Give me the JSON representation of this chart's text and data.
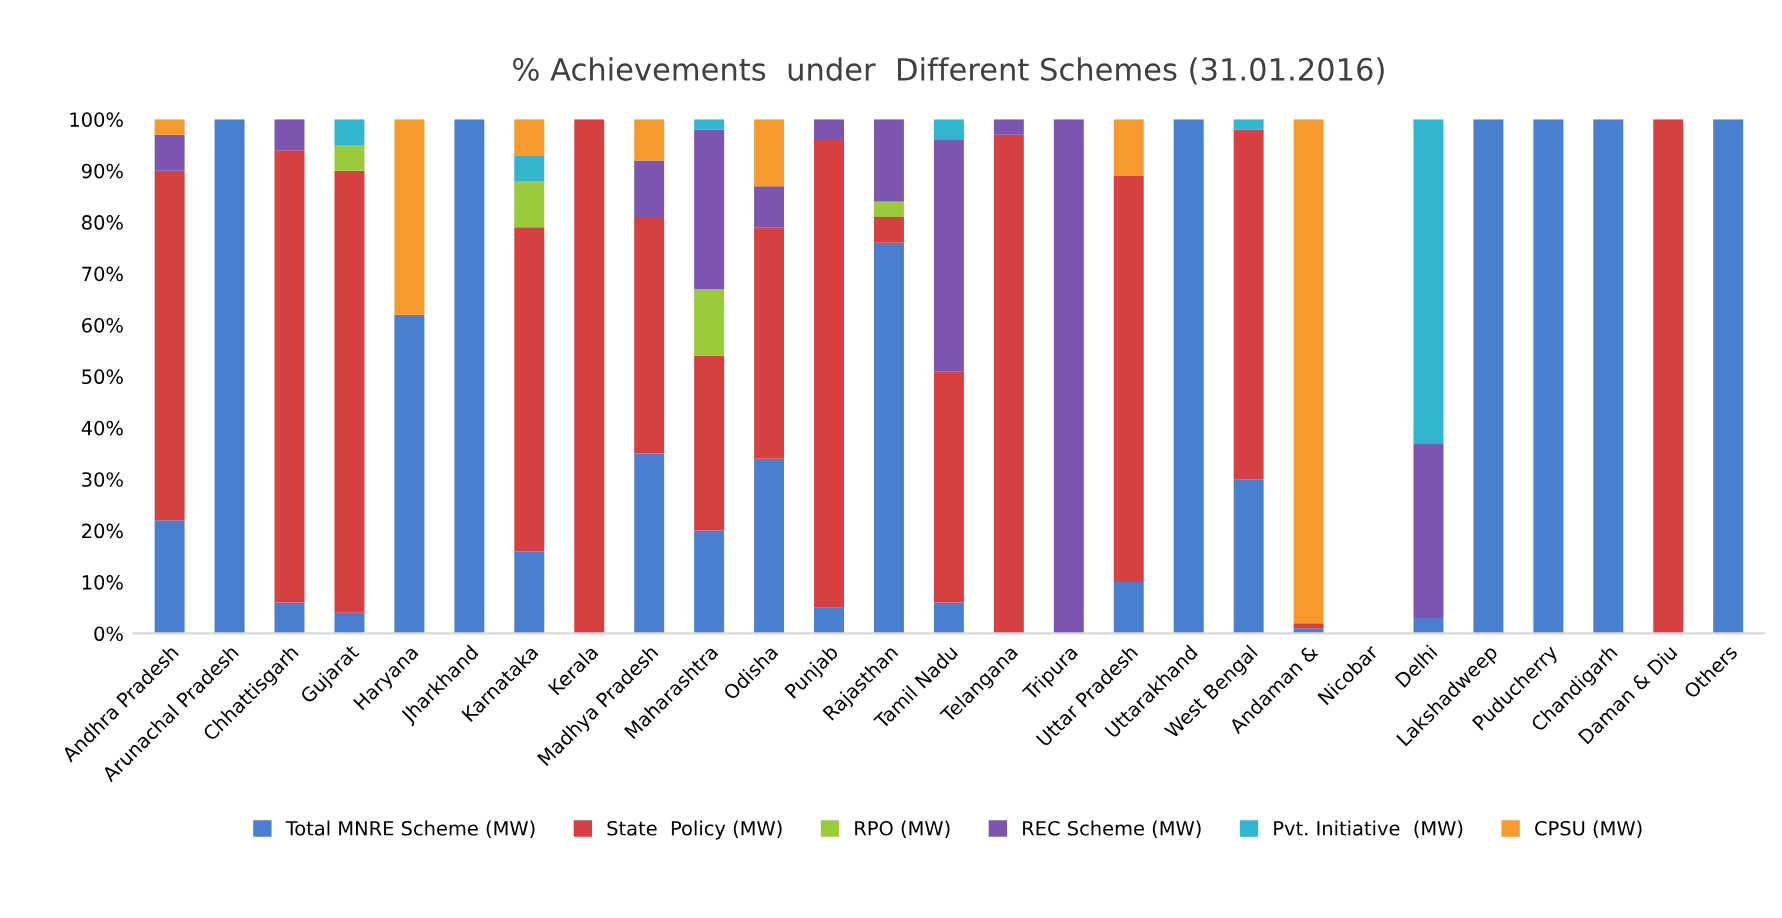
{
  "chart_data": {
    "type": "bar",
    "stacked": true,
    "title": "% Achievements  under  Different Schemes (31.01.2016)",
    "categories": [
      "Andhra Pradesh",
      "Arunachal Pradesh",
      "Chhattisgarh",
      "Gujarat",
      "Haryana",
      "Jharkhand",
      "Karnataka",
      "Kerala",
      "Madhya Pradesh",
      "Maharashtra",
      "Odisha",
      "Punjab",
      "Rajasthan",
      "Tamil Nadu",
      "Telangana",
      "Tripura",
      "Uttar Pradesh",
      "Uttarakhand",
      "West Bengal",
      "Andaman &",
      "Nicobar",
      "Delhi",
      "Lakshadweep",
      "Puducherry",
      "Chandigarh",
      "Daman & Diu",
      "Others"
    ],
    "series": [
      {
        "name": "Total MNRE Scheme (MW)",
        "color": "#4a7fd0",
        "values": [
          22,
          100,
          6,
          4,
          62,
          100,
          16,
          0,
          35,
          20,
          34,
          5,
          76,
          6,
          0,
          0,
          10,
          100,
          30,
          1,
          null,
          3,
          100,
          100,
          100,
          0,
          100
        ]
      },
      {
        "name": "State  Policy (MW)",
        "color": "#d64040",
        "values": [
          68,
          0,
          88,
          86,
          0,
          0,
          63,
          100,
          46,
          34,
          45,
          91,
          5,
          45,
          97,
          0,
          79,
          0,
          68,
          1,
          null,
          0,
          0,
          0,
          0,
          100,
          0
        ]
      },
      {
        "name": "RPO (MW)",
        "color": "#9bcb3c",
        "values": [
          0,
          0,
          0,
          5,
          0,
          0,
          9,
          0,
          0,
          13,
          0,
          0,
          3,
          0,
          0,
          0,
          0,
          0,
          0,
          0,
          null,
          0,
          0,
          0,
          0,
          0,
          0
        ]
      },
      {
        "name": "REC Scheme (MW)",
        "color": "#7c55b0",
        "values": [
          7,
          0,
          6,
          0,
          0,
          0,
          0,
          0,
          11,
          31,
          8,
          4,
          16,
          45,
          3,
          100,
          0,
          0,
          0,
          0,
          null,
          34,
          0,
          0,
          0,
          0,
          0
        ]
      },
      {
        "name": "Pvt. Initiative  (MW)",
        "color": "#33b5d0",
        "values": [
          0,
          0,
          0,
          5,
          0,
          0,
          5,
          0,
          0,
          2,
          0,
          0,
          0,
          4,
          0,
          0,
          0,
          0,
          2,
          0,
          null,
          63,
          0,
          0,
          0,
          0,
          0
        ]
      },
      {
        "name": "CPSU (MW)",
        "color": "#f79a2e",
        "values": [
          3,
          0,
          0,
          0,
          38,
          0,
          7,
          0,
          8,
          0,
          13,
          0,
          0,
          0,
          0,
          0,
          11,
          0,
          0,
          98,
          null,
          0,
          0,
          0,
          0,
          0,
          0
        ]
      }
    ],
    "ylim": [
      0,
      100
    ],
    "yticks": [
      {
        "value": 0,
        "label": "0%"
      },
      {
        "value": 10,
        "label": "10%"
      },
      {
        "value": 20,
        "label": "20%"
      },
      {
        "value": 30,
        "label": "30%"
      },
      {
        "value": 40,
        "label": "40%"
      },
      {
        "value": 50,
        "label": "50%"
      },
      {
        "value": 60,
        "label": "60%"
      },
      {
        "value": 70,
        "label": "70%"
      },
      {
        "value": 80,
        "label": "80%"
      },
      {
        "value": 90,
        "label": "90%"
      },
      {
        "value": 100,
        "label": "100%"
      }
    ],
    "grid": false,
    "legend": "bottom"
  }
}
